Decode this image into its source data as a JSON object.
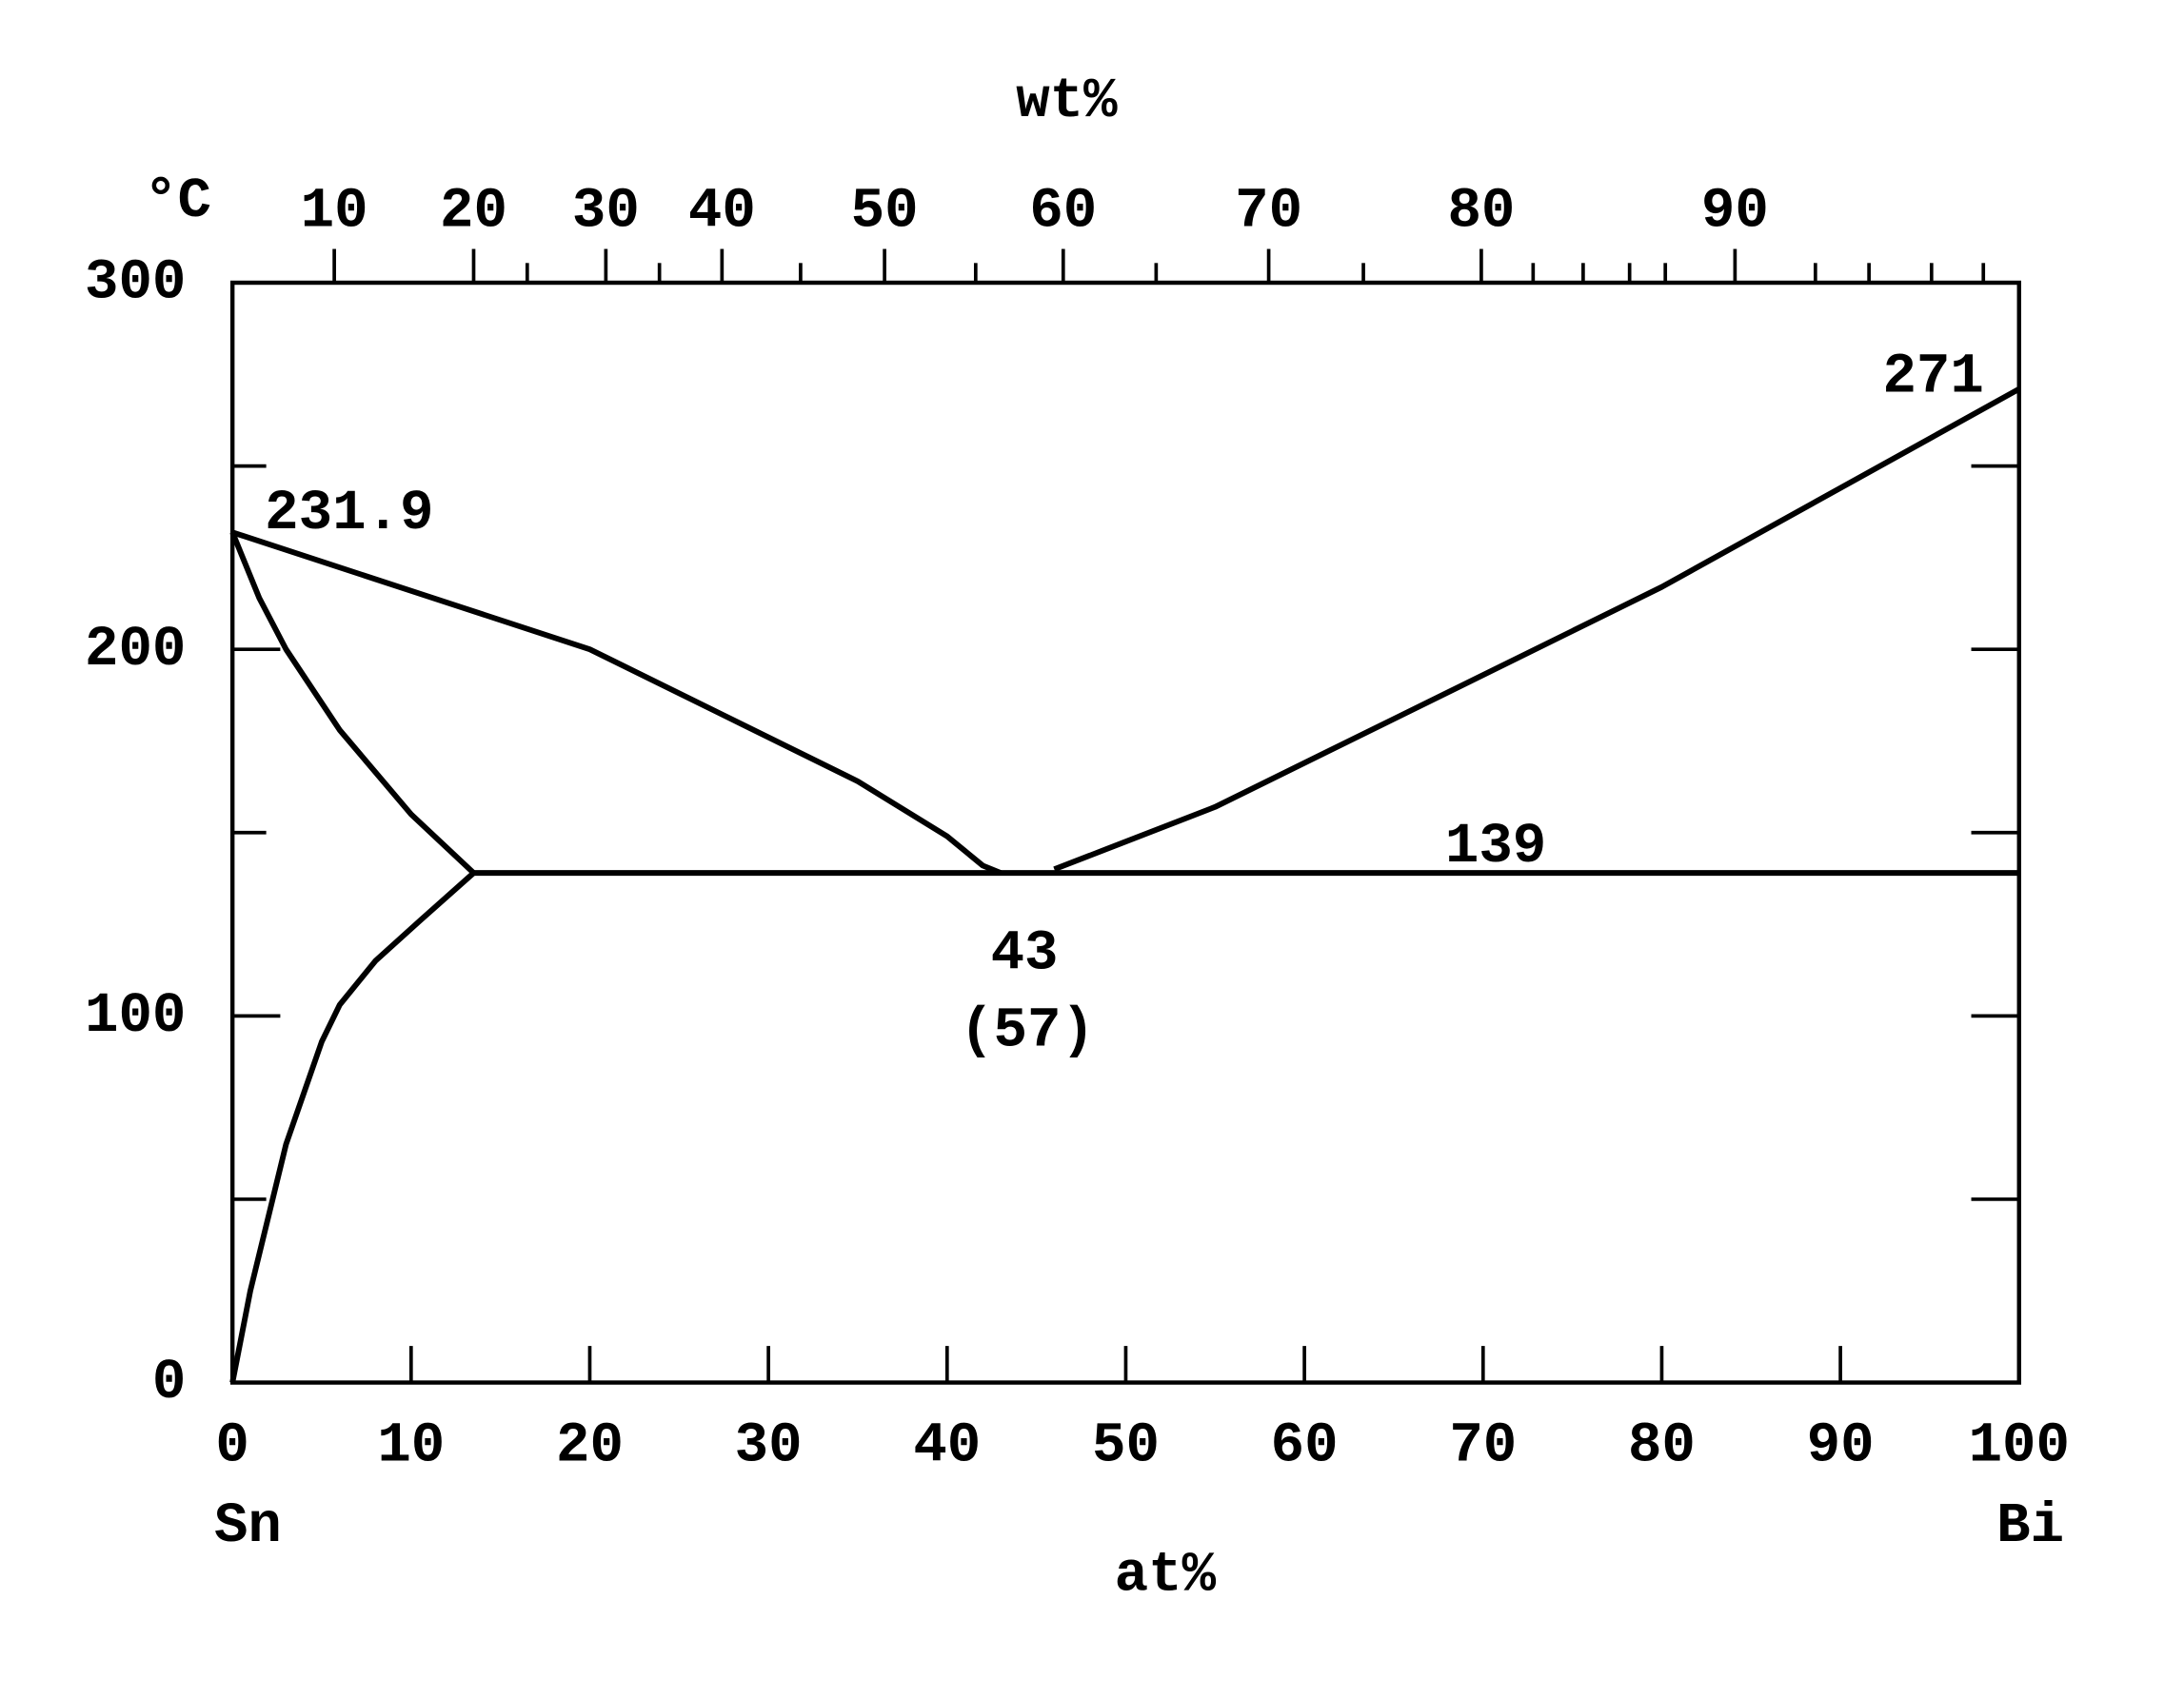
{
  "chart_data": {
    "type": "line",
    "x_label": "at%",
    "x2_label": "wt%",
    "y_label": "°C",
    "left_element": "Sn",
    "right_element": "Bi",
    "xlim": [
      0,
      100
    ],
    "xticks": [
      0,
      10,
      20,
      30,
      40,
      50,
      60,
      70,
      80,
      90,
      100
    ],
    "ylim": [
      0,
      300
    ],
    "yticks": [
      0,
      100,
      200,
      300
    ],
    "yminor": [
      50,
      150,
      250
    ],
    "x2ticks": [
      {
        "value": 5.7,
        "label": "10"
      },
      {
        "value": 13.5,
        "label": "20"
      },
      {
        "value": 20.9,
        "label": "30"
      },
      {
        "value": 27.4,
        "label": "40"
      },
      {
        "value": 36.5,
        "label": "50"
      },
      {
        "value": 46.5,
        "label": "60"
      },
      {
        "value": 58,
        "label": "70"
      },
      {
        "value": 69.9,
        "label": "80"
      },
      {
        "value": 84.1,
        "label": "90"
      }
    ],
    "x2minor": [
      16.5,
      23.9,
      31.8,
      41.6,
      51.7,
      63.3,
      72.8,
      75.6,
      78.2,
      80.2,
      88.6,
      91.6,
      95.1,
      98
    ],
    "series": [
      {
        "name": "liquidus-Sn",
        "color": "#000000",
        "x": [
          0,
          20,
          35,
          40,
          42,
          43
        ],
        "y": [
          231.9,
          200,
          164,
          149,
          141,
          139
        ]
      },
      {
        "name": "liquidus-Bi",
        "color": "#000000",
        "x": [
          46,
          55,
          65,
          80,
          100
        ],
        "y": [
          140,
          157,
          181,
          217,
          271
        ]
      },
      {
        "name": "solidus",
        "color": "#000000",
        "x": [
          0,
          1.5,
          3,
          6,
          10,
          13.5
        ],
        "y": [
          231.9,
          214,
          200,
          178,
          155,
          139
        ]
      },
      {
        "name": "solvus",
        "color": "#000000",
        "x": [
          13.5,
          10.5,
          8,
          6,
          5,
          3,
          1,
          0
        ],
        "y": [
          139,
          126,
          115,
          103,
          93,
          65,
          25,
          0
        ]
      },
      {
        "name": "eutectic",
        "color": "#000000",
        "x": [
          13.5,
          100
        ],
        "y": [
          139,
          139
        ]
      }
    ],
    "annotations": [
      "231.9",
      "271",
      "139",
      "43",
      "(57)"
    ]
  }
}
